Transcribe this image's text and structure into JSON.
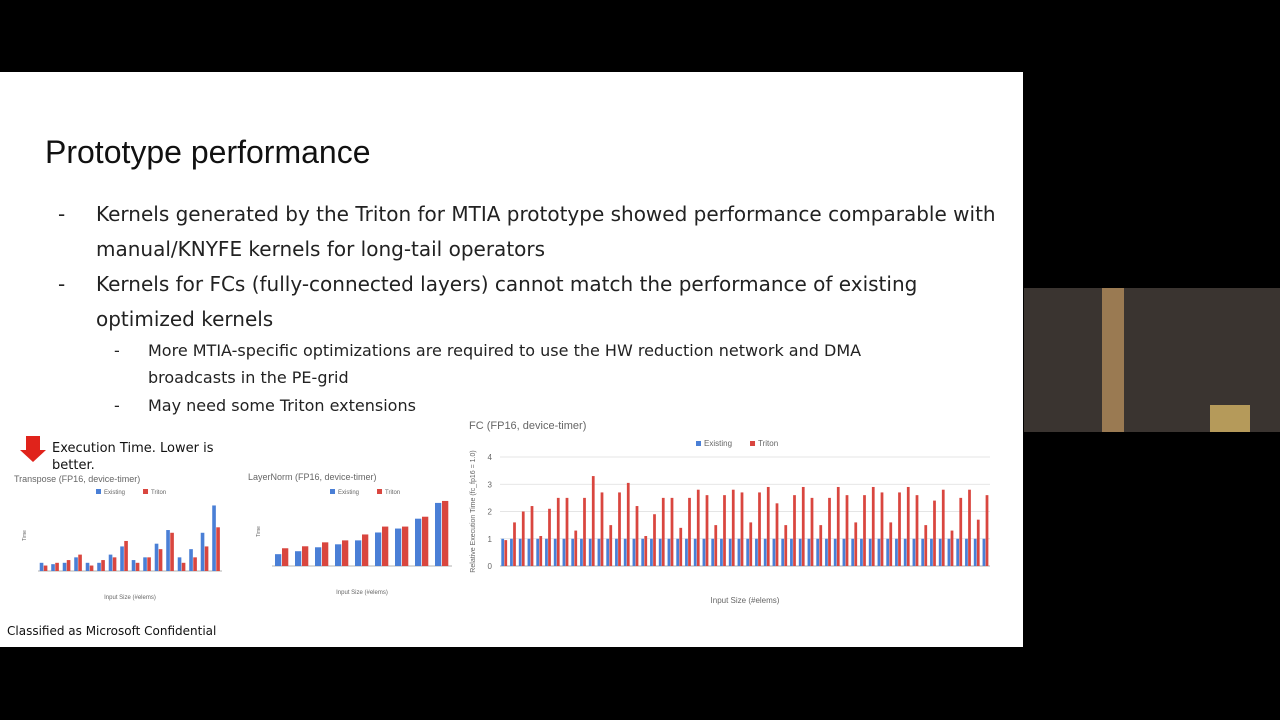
{
  "slide": {
    "title": "Prototype performance",
    "bullets": [
      {
        "level": 1,
        "text": "Kernels generated by the Triton for MTIA prototype showed performance comparable with manual/KNYFE kernels for long-tail operators"
      },
      {
        "level": 1,
        "text": "Kernels for FCs (fully-connected layers) cannot match the performance of existing optimized kernels"
      },
      {
        "level": 2,
        "text": "More MTIA-specific optimizations are required to use the HW reduction network and DMA broadcasts in the PE-grid"
      },
      {
        "level": 2,
        "text": "May need some Triton extensions"
      }
    ],
    "note": "Execution Time. Lower is better.",
    "footer": "Classified as Microsoft Confidential"
  },
  "charts": [
    {
      "type": "bar",
      "title": "Transpose (FP16, device-timer)",
      "xlabel": "Input Size (#elems)",
      "ylabel": "Time",
      "categories": [
        null,
        null,
        null,
        null,
        null,
        null,
        null,
        null,
        null,
        null,
        null,
        null,
        null,
        null,
        null,
        null
      ],
      "series": [
        {
          "name": "Existing",
          "color": "#4a7fd6",
          "values": [
            0.3,
            0.25,
            0.3,
            0.5,
            0.3,
            0.3,
            0.6,
            0.9,
            0.4,
            0.5,
            1.0,
            1.5,
            0.5,
            0.8,
            1.4,
            2.4
          ]
        },
        {
          "name": "Triton",
          "color": "#d9463f",
          "values": [
            0.2,
            0.3,
            0.4,
            0.6,
            0.2,
            0.4,
            0.5,
            1.1,
            0.3,
            0.5,
            0.8,
            1.4,
            0.3,
            0.5,
            0.9,
            1.6
          ]
        }
      ],
      "ylim": [
        0,
        2.6
      ]
    },
    {
      "type": "bar",
      "title": "LayerNorm (FP16, device-timer)",
      "xlabel": "Input Size (#elems)",
      "ylabel": "Time",
      "categories": [
        null,
        null,
        null,
        null,
        null,
        null,
        null,
        null,
        null
      ],
      "series": [
        {
          "name": "Existing",
          "color": "#4a7fd6",
          "values": [
            0.6,
            0.75,
            0.95,
            1.1,
            1.3,
            1.7,
            1.9,
            2.4,
            3.2
          ]
        },
        {
          "name": "Triton",
          "color": "#d9463f",
          "values": [
            0.9,
            1.0,
            1.2,
            1.3,
            1.6,
            2.0,
            2.0,
            2.5,
            3.3
          ]
        }
      ],
      "ylim": [
        0,
        3.5
      ]
    },
    {
      "type": "bar",
      "title": "FC (FP16, device-timer)",
      "xlabel": "Input Size (#elems)",
      "ylabel": "Relative Execution Time (fc_fp16 = 1.0)",
      "categories": [
        null,
        null,
        null,
        null,
        null,
        null,
        null,
        null,
        null,
        null,
        null,
        null,
        null,
        null,
        null,
        null,
        null,
        null,
        null,
        null,
        null,
        null,
        null,
        null,
        null,
        null,
        null,
        null,
        null,
        null,
        null,
        null,
        null,
        null,
        null,
        null,
        null,
        null,
        null,
        null,
        null,
        null,
        null,
        null,
        null,
        null,
        null,
        null,
        null,
        null,
        null,
        null,
        null,
        null,
        null,
        null
      ],
      "series": [
        {
          "name": "Existing",
          "color": "#4a7fd6",
          "values": [
            1,
            1,
            1,
            1,
            1,
            1,
            1,
            1,
            1,
            1,
            1,
            1,
            1,
            1,
            1,
            1,
            1,
            1,
            1,
            1,
            1,
            1,
            1,
            1,
            1,
            1,
            1,
            1,
            1,
            1,
            1,
            1,
            1,
            1,
            1,
            1,
            1,
            1,
            1,
            1,
            1,
            1,
            1,
            1,
            1,
            1,
            1,
            1,
            1,
            1,
            1,
            1,
            1,
            1,
            1,
            1
          ]
        },
        {
          "name": "Triton",
          "color": "#d9463f",
          "values": [
            0.95,
            1.6,
            2.0,
            2.2,
            1.1,
            2.1,
            2.5,
            2.5,
            1.3,
            2.5,
            3.3,
            2.7,
            1.5,
            2.7,
            3.05,
            2.2,
            1.1,
            1.9,
            2.5,
            2.5,
            1.4,
            2.5,
            2.8,
            2.6,
            1.5,
            2.6,
            2.8,
            2.7,
            1.6,
            2.7,
            2.9,
            2.3,
            1.5,
            2.6,
            2.9,
            2.5,
            1.5,
            2.5,
            2.9,
            2.6,
            1.6,
            2.6,
            2.9,
            2.7,
            1.6,
            2.7,
            2.9,
            2.6,
            1.5,
            2.4,
            2.8,
            1.3,
            2.5,
            2.8,
            1.7,
            2.6
          ]
        }
      ],
      "ylim": [
        0,
        4
      ],
      "yticks": [
        0,
        1,
        2,
        3,
        4
      ],
      "grid": true
    }
  ]
}
